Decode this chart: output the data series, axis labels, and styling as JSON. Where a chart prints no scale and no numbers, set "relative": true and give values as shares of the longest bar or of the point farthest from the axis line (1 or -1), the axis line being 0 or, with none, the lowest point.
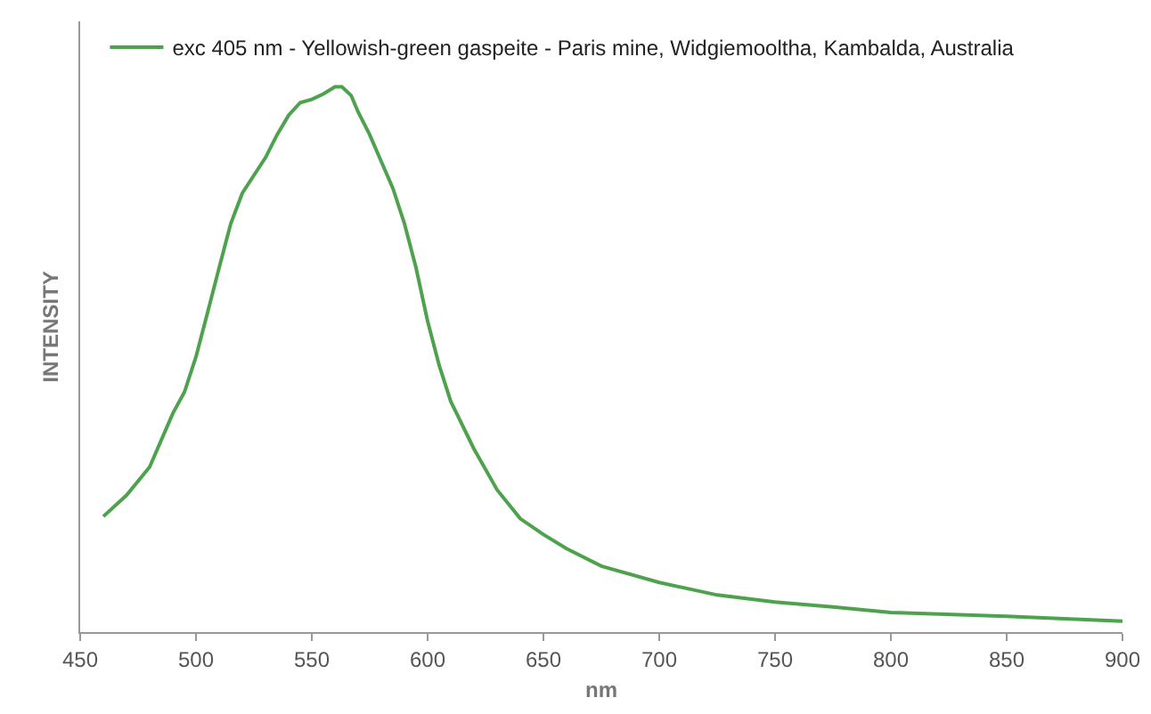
{
  "chart_data": {
    "type": "line",
    "relative": true,
    "xlabel": "nm",
    "ylabel": "INTENSITY",
    "xlim": [
      450,
      900
    ],
    "xticks": [
      450,
      500,
      550,
      600,
      650,
      700,
      750,
      800,
      850,
      900
    ],
    "legend": "top",
    "grid": false,
    "marker": "none",
    "line_style": "solid",
    "series": [
      {
        "name": "exc 405 nm - Yellowish-green gaspeite - Paris mine, Widgiemooltha, Kambalda, Australia",
        "color": "#4ea24e",
        "x": [
          460,
          470,
          480,
          490,
          495,
          500,
          505,
          510,
          515,
          520,
          530,
          535,
          540,
          545,
          550,
          555,
          560,
          563,
          567,
          570,
          575,
          580,
          585,
          590,
          595,
          600,
          605,
          610,
          620,
          630,
          640,
          650,
          660,
          675,
          700,
          725,
          750,
          775,
          800,
          850,
          900
        ],
        "values": [
          0.212,
          0.251,
          0.303,
          0.401,
          0.44,
          0.505,
          0.586,
          0.668,
          0.749,
          0.805,
          0.87,
          0.912,
          0.948,
          0.971,
          0.977,
          0.987,
          1.0,
          1.0,
          0.984,
          0.954,
          0.912,
          0.863,
          0.814,
          0.749,
          0.668,
          0.57,
          0.489,
          0.423,
          0.336,
          0.261,
          0.208,
          0.179,
          0.153,
          0.121,
          0.091,
          0.068,
          0.055,
          0.046,
          0.036,
          0.029,
          0.02
        ]
      }
    ]
  }
}
